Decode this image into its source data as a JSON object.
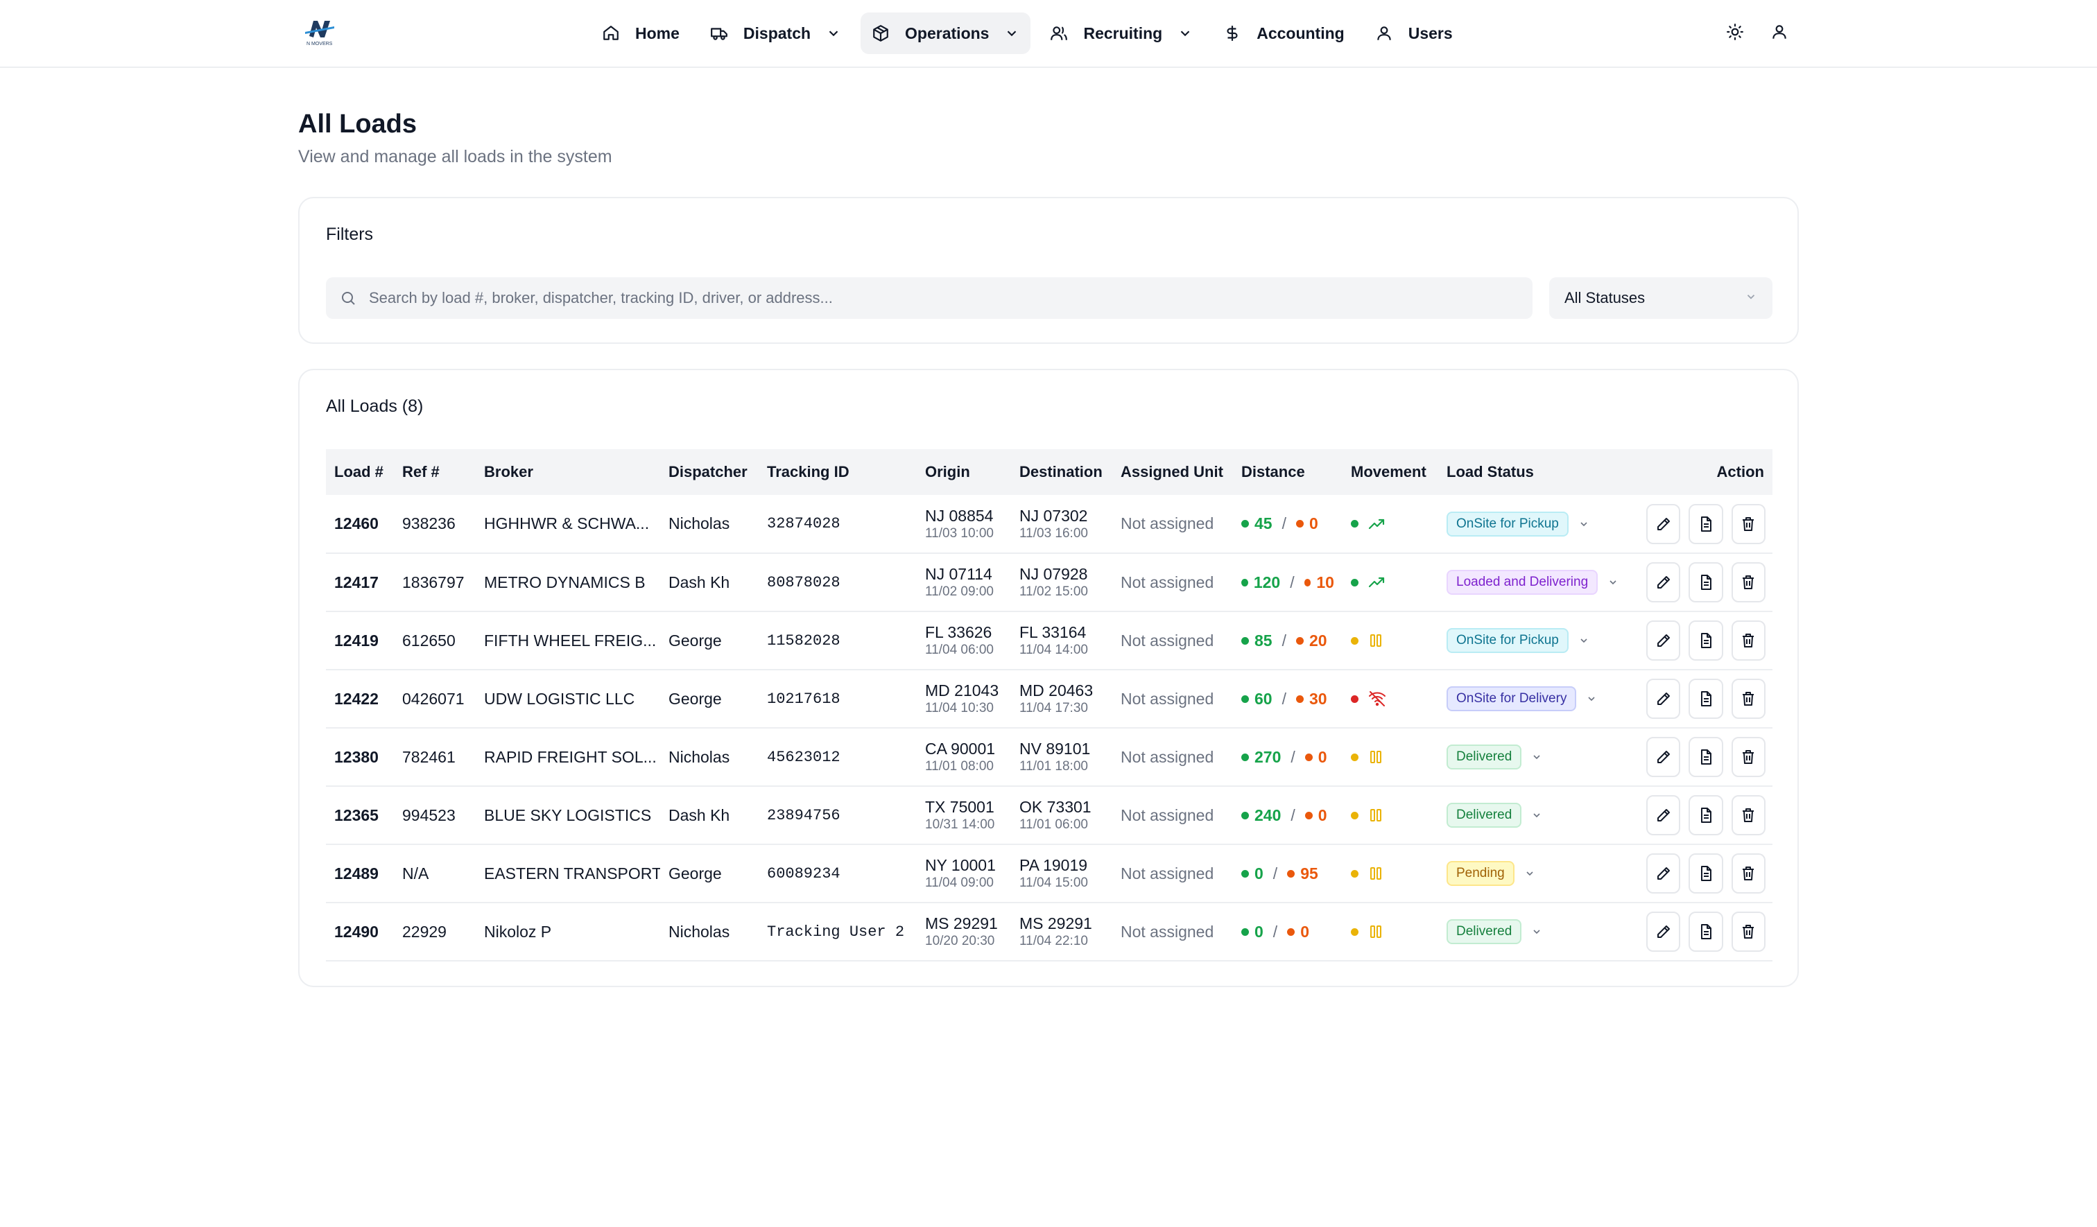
{
  "nav": {
    "brand_text": "N MOVERS",
    "items": [
      {
        "label": "Home"
      },
      {
        "label": "Dispatch"
      },
      {
        "label": "Operations"
      },
      {
        "label": "Recruiting"
      },
      {
        "label": "Accounting"
      },
      {
        "label": "Users"
      }
    ],
    "active": "Operations"
  },
  "page": {
    "title": "All Loads",
    "subtitle": "View and manage all loads in the system"
  },
  "filters": {
    "title": "Filters",
    "search_placeholder": "Search by load #, broker, dispatcher, tracking ID, driver, or address...",
    "status_select": "All Statuses"
  },
  "loads": {
    "title": "All Loads (8)",
    "columns": [
      "Load #",
      "Ref #",
      "Broker",
      "Dispatcher",
      "Tracking ID",
      "Origin",
      "Destination",
      "Assigned Unit",
      "Distance",
      "Movement",
      "Load Status",
      "Action"
    ],
    "rows": [
      {
        "load": "12460",
        "ref": "938236",
        "broker": "HGHHWR & SCHWA...",
        "dispatcher": "Nicholas",
        "tracking": "32874028",
        "origin": "NJ 08854",
        "origin_time": "11/03 10:00",
        "dest": "NJ 07302",
        "dest_time": "11/03 16:00",
        "unit": "Not assigned",
        "dist_a": "45",
        "dist_b": "0",
        "movement": "moving",
        "status": "OnSite for Pickup",
        "status_color": "cyan"
      },
      {
        "load": "12417",
        "ref": "1836797",
        "broker": "METRO DYNAMICS B",
        "dispatcher": "Dash Kh",
        "tracking": "80878028",
        "origin": "NJ 07114",
        "origin_time": "11/02 09:00",
        "dest": "NJ 07928",
        "dest_time": "11/02 15:00",
        "unit": "Not assigned",
        "dist_a": "120",
        "dist_b": "10",
        "movement": "moving",
        "status": "Loaded and Delivering",
        "status_color": "purple"
      },
      {
        "load": "12419",
        "ref": "612650",
        "broker": "FIFTH WHEEL FREIG...",
        "dispatcher": "George",
        "tracking": "11582028",
        "origin": "FL 33626",
        "origin_time": "11/04 06:00",
        "dest": "FL 33164",
        "dest_time": "11/04 14:00",
        "unit": "Not assigned",
        "dist_a": "85",
        "dist_b": "20",
        "movement": "paused",
        "status": "OnSite for Pickup",
        "status_color": "cyan"
      },
      {
        "load": "12422",
        "ref": "0426071",
        "broker": "UDW LOGISTIC LLC",
        "dispatcher": "George",
        "tracking": "10217618",
        "origin": "MD 21043",
        "origin_time": "11/04 10:30",
        "dest": "MD 20463",
        "dest_time": "11/04 17:30",
        "unit": "Not assigned",
        "dist_a": "60",
        "dist_b": "30",
        "movement": "offline",
        "status": "OnSite for Delivery",
        "status_color": "indigo"
      },
      {
        "load": "12380",
        "ref": "782461",
        "broker": "RAPID FREIGHT SOL...",
        "dispatcher": "Nicholas",
        "tracking": "45623012",
        "origin": "CA 90001",
        "origin_time": "11/01 08:00",
        "dest": "NV 89101",
        "dest_time": "11/01 18:00",
        "unit": "Not assigned",
        "dist_a": "270",
        "dist_b": "0",
        "movement": "paused",
        "status": "Delivered",
        "status_color": "green"
      },
      {
        "load": "12365",
        "ref": "994523",
        "broker": "BLUE SKY LOGISTICS",
        "dispatcher": "Dash Kh",
        "tracking": "23894756",
        "origin": "TX 75001",
        "origin_time": "10/31 14:00",
        "dest": "OK 73301",
        "dest_time": "11/01 06:00",
        "unit": "Not assigned",
        "dist_a": "240",
        "dist_b": "0",
        "movement": "paused",
        "status": "Delivered",
        "status_color": "green"
      },
      {
        "load": "12489",
        "ref": "N/A",
        "broker": "EASTERN TRANSPORT",
        "dispatcher": "George",
        "tracking": "60089234",
        "origin": "NY 10001",
        "origin_time": "11/04 09:00",
        "dest": "PA 19019",
        "dest_time": "11/04 15:00",
        "unit": "Not assigned",
        "dist_a": "0",
        "dist_b": "95",
        "movement": "paused",
        "status": "Pending",
        "status_color": "yellow"
      },
      {
        "load": "12490",
        "ref": "22929",
        "broker": "Nikoloz P",
        "dispatcher": "Nicholas",
        "tracking": "Tracking User 2",
        "origin": "MS 29291",
        "origin_time": "10/20 20:30",
        "dest": "MS 29291",
        "dest_time": "11/04 22:10",
        "unit": "Not assigned",
        "dist_a": "0",
        "dist_b": "0",
        "movement": "paused",
        "status": "Delivered",
        "status_color": "green"
      }
    ]
  },
  "colors": {
    "green": "#16a34a",
    "orange": "#ea580c",
    "yellow": "#eab308",
    "red": "#dc2626"
  }
}
